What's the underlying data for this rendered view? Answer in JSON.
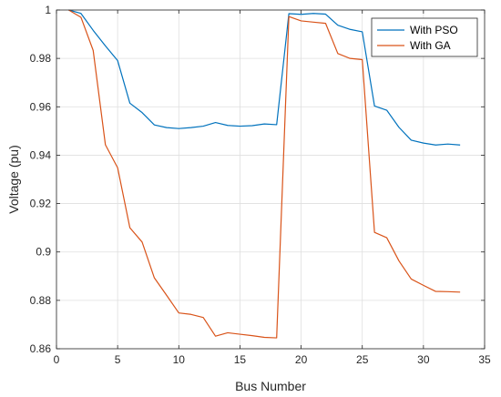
{
  "chart_data": {
    "type": "line",
    "title": "",
    "xlabel": "Bus Number",
    "ylabel": "Voltage (pu)",
    "xlim": [
      0,
      35
    ],
    "ylim": [
      0.86,
      1.0
    ],
    "xticks": [
      0,
      5,
      10,
      15,
      20,
      25,
      30,
      35
    ],
    "yticks": [
      0.86,
      0.88,
      0.9,
      0.92,
      0.94,
      0.96,
      0.98,
      1.0
    ],
    "xtick_labels": [
      "0",
      "5",
      "10",
      "15",
      "20",
      "25",
      "30",
      "35"
    ],
    "ytick_labels": [
      "0.86",
      "0.88",
      "0.9",
      "0.92",
      "0.94",
      "0.96",
      "0.98",
      "1"
    ],
    "grid": true,
    "legend_position": "top-right",
    "x": [
      1,
      2,
      3,
      4,
      5,
      6,
      7,
      8,
      9,
      10,
      11,
      12,
      13,
      14,
      15,
      16,
      17,
      18,
      19,
      20,
      21,
      22,
      23,
      24,
      25,
      26,
      27,
      28,
      29,
      30,
      31,
      32,
      33
    ],
    "series": [
      {
        "name": "With PSO",
        "color": "#0072BD",
        "values": [
          1.0,
          0.9986,
          0.9916,
          0.9852,
          0.9791,
          0.9615,
          0.9576,
          0.9525,
          0.9514,
          0.951,
          0.9514,
          0.952,
          0.9535,
          0.9523,
          0.952,
          0.9522,
          0.9529,
          0.9526,
          0.9985,
          0.9982,
          0.9986,
          0.9983,
          0.9937,
          0.992,
          0.991,
          0.9603,
          0.9586,
          0.9515,
          0.9462,
          0.945,
          0.9442,
          0.9446,
          0.9442
        ]
      },
      {
        "name": "With GA",
        "color": "#D95319",
        "values": [
          1.0,
          0.997,
          0.9833,
          0.9443,
          0.9348,
          0.91,
          0.9041,
          0.8893,
          0.8821,
          0.8748,
          0.8742,
          0.8729,
          0.8652,
          0.8666,
          0.866,
          0.8654,
          0.8647,
          0.8645,
          0.9973,
          0.9955,
          0.995,
          0.9945,
          0.982,
          0.98,
          0.9795,
          0.9081,
          0.9059,
          0.8963,
          0.8888,
          0.8862,
          0.8837,
          0.8836,
          0.8834
        ]
      }
    ]
  }
}
